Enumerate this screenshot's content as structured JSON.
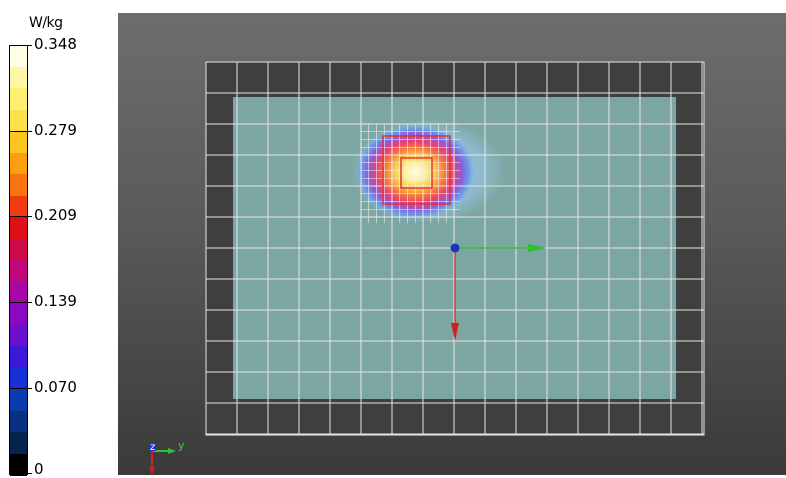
{
  "legend": {
    "unit": "W/kg",
    "ticks": [
      {
        "label": "0.348",
        "value": 0.348
      },
      {
        "label": "0.279",
        "value": 0.279
      },
      {
        "label": "0.209",
        "value": 0.209
      },
      {
        "label": "0.139",
        "value": 0.139
      },
      {
        "label": "0.070",
        "value": 0.07
      },
      {
        "label": "0",
        "value": 0
      }
    ],
    "colors": [
      "#ffffe8",
      "#fff6a6",
      "#ffef70",
      "#fde04a",
      "#fcc520",
      "#fb9e10",
      "#f97410",
      "#ef3c10",
      "#e01018",
      "#d00a48",
      "#c0087c",
      "#aa06a6",
      "#8a08c0",
      "#6a10ce",
      "#3c18d8",
      "#1830d8",
      "#0a3cb0",
      "#083080",
      "#042450",
      "#000000"
    ]
  },
  "viewport": {
    "axes_label_y": "y",
    "axes_label_z": "z",
    "colors": {
      "phantom": "#7ea9a5",
      "grid": "#e6e6e6",
      "arrow_x": "#d02020",
      "arrow_y": "#30c030",
      "origin": "#2030c0",
      "zoom_box": "#e03030"
    }
  }
}
